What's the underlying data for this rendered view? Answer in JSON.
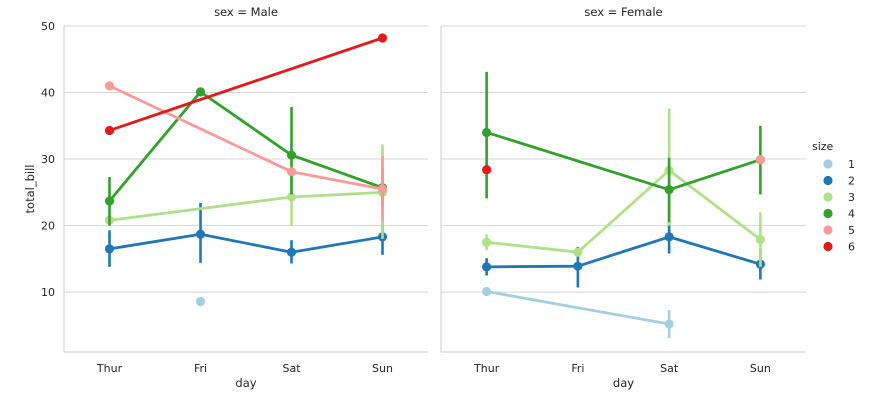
{
  "chart_data": {
    "type": "line",
    "xlabel": "day",
    "ylabel": "total_bill",
    "categories": [
      "Thur",
      "Fri",
      "Sat",
      "Sun"
    ],
    "yticks": [
      10,
      20,
      30,
      40,
      50
    ],
    "ylim": [
      1,
      50
    ],
    "grid": true,
    "legend": {
      "title": "size",
      "placement": "right",
      "entries": [
        {
          "label": "1",
          "color": "#a6cee3"
        },
        {
          "label": "2",
          "color": "#1f78b4"
        },
        {
          "label": "3",
          "color": "#b2df8a"
        },
        {
          "label": "4",
          "color": "#33a02c"
        },
        {
          "label": "5",
          "color": "#fb9a99"
        },
        {
          "label": "6",
          "color": "#e31a1c"
        }
      ]
    },
    "panels": [
      {
        "title": "sex = Male",
        "series": [
          {
            "name": "1",
            "color": "#a6cee3",
            "points": [
              {
                "x": "Fri",
                "y": 8.6,
                "lo": 8.6,
                "hi": 8.6
              }
            ]
          },
          {
            "name": "2",
            "color": "#1f78b4",
            "points": [
              {
                "x": "Thur",
                "y": 16.5,
                "lo": 13.8,
                "hi": 19.3
              },
              {
                "x": "Fri",
                "y": 18.7,
                "lo": 14.4,
                "hi": 23.4
              },
              {
                "x": "Sat",
                "y": 16.0,
                "lo": 14.3,
                "hi": 17.8
              },
              {
                "x": "Sun",
                "y": 18.3,
                "lo": 15.6,
                "hi": 20.8
              }
            ]
          },
          {
            "name": "3",
            "color": "#b2df8a",
            "points": [
              {
                "x": "Thur",
                "y": 20.8,
                "lo": 20.8,
                "hi": 20.8
              },
              {
                "x": "Sat",
                "y": 24.3,
                "lo": 20.0,
                "hi": 28.8
              },
              {
                "x": "Sun",
                "y": 25.0,
                "lo": 18.0,
                "hi": 32.2
              }
            ]
          },
          {
            "name": "4",
            "color": "#33a02c",
            "points": [
              {
                "x": "Thur",
                "y": 23.7,
                "lo": 20.0,
                "hi": 27.3
              },
              {
                "x": "Fri",
                "y": 40.1,
                "lo": 40.1,
                "hi": 40.1
              },
              {
                "x": "Sat",
                "y": 30.6,
                "lo": 24.7,
                "hi": 37.8
              },
              {
                "x": "Sun",
                "y": 25.7,
                "lo": 22.8,
                "hi": 28.6
              }
            ]
          },
          {
            "name": "5",
            "color": "#fb9a99",
            "points": [
              {
                "x": "Thur",
                "y": 41.0,
                "lo": 41.0,
                "hi": 41.0
              },
              {
                "x": "Sat",
                "y": 28.1,
                "lo": 28.1,
                "hi": 28.1
              },
              {
                "x": "Sun",
                "y": 25.5,
                "lo": 20.7,
                "hi": 30.5
              }
            ]
          },
          {
            "name": "6",
            "color": "#e31a1c",
            "points": [
              {
                "x": "Thur",
                "y": 34.3,
                "lo": 34.3,
                "hi": 34.3
              },
              {
                "x": "Sun",
                "y": 48.2,
                "lo": 48.2,
                "hi": 48.2
              }
            ]
          }
        ]
      },
      {
        "title": "sex = Female",
        "series": [
          {
            "name": "1",
            "color": "#a6cee3",
            "points": [
              {
                "x": "Thur",
                "y": 10.1,
                "lo": 10.1,
                "hi": 10.1
              },
              {
                "x": "Sat",
                "y": 5.2,
                "lo": 3.1,
                "hi": 7.3
              }
            ]
          },
          {
            "name": "2",
            "color": "#1f78b4",
            "points": [
              {
                "x": "Thur",
                "y": 13.8,
                "lo": 12.5,
                "hi": 15.1
              },
              {
                "x": "Fri",
                "y": 13.9,
                "lo": 10.7,
                "hi": 16.8
              },
              {
                "x": "Sat",
                "y": 18.3,
                "lo": 15.8,
                "hi": 20.8
              },
              {
                "x": "Sun",
                "y": 14.2,
                "lo": 11.9,
                "hi": 16.4
              }
            ]
          },
          {
            "name": "3",
            "color": "#b2df8a",
            "points": [
              {
                "x": "Thur",
                "y": 17.5,
                "lo": 16.3,
                "hi": 18.7
              },
              {
                "x": "Fri",
                "y": 16.0,
                "lo": 16.0,
                "hi": 16.0
              },
              {
                "x": "Sat",
                "y": 28.3,
                "lo": 20.0,
                "hi": 37.6
              },
              {
                "x": "Sun",
                "y": 17.9,
                "lo": 13.8,
                "hi": 22.0
              }
            ]
          },
          {
            "name": "4",
            "color": "#33a02c",
            "points": [
              {
                "x": "Thur",
                "y": 34.0,
                "lo": 24.1,
                "hi": 43.1
              },
              {
                "x": "Sat",
                "y": 25.4,
                "lo": 20.5,
                "hi": 30.2
              },
              {
                "x": "Sun",
                "y": 29.9,
                "lo": 24.7,
                "hi": 35.0
              }
            ]
          },
          {
            "name": "5",
            "color": "#fb9a99",
            "points": [
              {
                "x": "Sun",
                "y": 29.9,
                "lo": 29.9,
                "hi": 29.9
              }
            ]
          },
          {
            "name": "6",
            "color": "#e31a1c",
            "points": [
              {
                "x": "Thur",
                "y": 28.4,
                "lo": 28.4,
                "hi": 28.4
              }
            ]
          }
        ]
      }
    ]
  }
}
